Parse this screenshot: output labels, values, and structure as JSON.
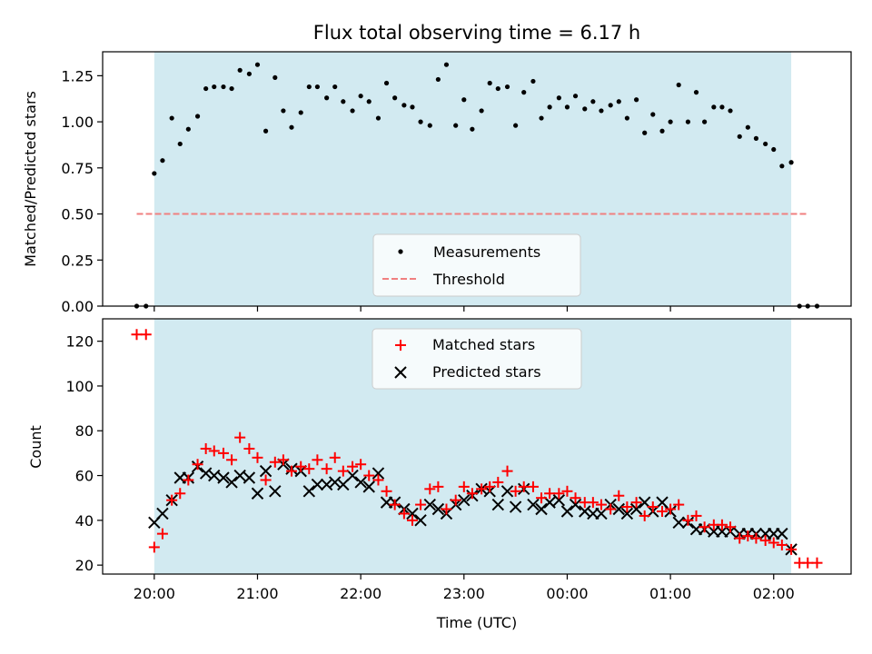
{
  "figure": {
    "title": "Flux total observing time = 6.17 h",
    "xlabel": "Time (UTC)",
    "x_ticks": [
      "20:00",
      "21:00",
      "22:00",
      "23:00",
      "00:00",
      "01:00",
      "02:00"
    ],
    "x_tick_hours": [
      0,
      1,
      2,
      3,
      4,
      5,
      6
    ],
    "x_origin": "20:00 UTC",
    "shaded_span_hours": [
      0,
      6.17
    ],
    "shade_color": "#add8e6"
  },
  "chart_data": [
    {
      "type": "scatter",
      "panel": "top",
      "ylabel": "Matched/Predicted stars",
      "ylim": [
        0,
        1.38
      ],
      "y_ticks": [
        "0.00",
        "0.25",
        "0.50",
        "0.75",
        "1.00",
        "1.25"
      ],
      "y_tick_values": [
        0,
        0.25,
        0.5,
        0.75,
        1.0,
        1.25
      ],
      "legend_position": "lower center",
      "threshold": {
        "name": "Threshold",
        "value": 0.5,
        "x_range": [
          -0.17,
          6.33
        ],
        "color": "#f08080"
      },
      "series": [
        {
          "name": "Measurements",
          "color": "#000000",
          "x": [
            -0.17,
            -0.08,
            0.0,
            0.08,
            0.17,
            0.25,
            0.33,
            0.42,
            0.5,
            0.58,
            0.67,
            0.75,
            0.83,
            0.92,
            1.0,
            1.08,
            1.17,
            1.25,
            1.33,
            1.42,
            1.5,
            1.58,
            1.67,
            1.75,
            1.83,
            1.92,
            2.0,
            2.08,
            2.17,
            2.25,
            2.33,
            2.42,
            2.5,
            2.58,
            2.67,
            2.75,
            2.83,
            2.92,
            3.0,
            3.08,
            3.17,
            3.25,
            3.33,
            3.42,
            3.5,
            3.58,
            3.67,
            3.75,
            3.83,
            3.92,
            4.0,
            4.08,
            4.17,
            4.25,
            4.33,
            4.42,
            4.5,
            4.58,
            4.67,
            4.75,
            4.83,
            4.92,
            5.0,
            5.08,
            5.17,
            5.25,
            5.33,
            5.42,
            5.5,
            5.58,
            5.67,
            5.75,
            5.83,
            5.92,
            6.0,
            6.08,
            6.17,
            6.25,
            6.33,
            6.42
          ],
          "y": [
            0.0,
            0.0,
            0.72,
            0.79,
            1.02,
            0.88,
            0.96,
            1.03,
            1.18,
            1.19,
            1.19,
            1.18,
            1.28,
            1.26,
            1.31,
            0.95,
            1.24,
            1.06,
            0.97,
            1.05,
            1.19,
            1.19,
            1.13,
            1.19,
            1.11,
            1.06,
            1.14,
            1.11,
            1.02,
            1.21,
            1.13,
            1.09,
            1.08,
            1.0,
            0.98,
            1.23,
            1.31,
            0.98,
            1.12,
            0.96,
            1.06,
            1.21,
            1.18,
            1.19,
            0.98,
            1.16,
            1.22,
            1.02,
            1.08,
            1.13,
            1.08,
            1.14,
            1.07,
            1.11,
            1.06,
            1.09,
            1.11,
            1.02,
            1.12,
            0.94,
            1.04,
            0.95,
            1.0,
            1.2,
            1.0,
            1.16,
            1.0,
            1.08,
            1.08,
            1.06,
            0.92,
            0.97,
            0.91,
            0.88,
            0.85,
            0.76,
            0.78,
            0.0,
            0.0,
            0.0
          ]
        }
      ]
    },
    {
      "type": "scatter",
      "panel": "bottom",
      "ylabel": "Count",
      "ylim": [
        16,
        130
      ],
      "y_ticks": [
        "20",
        "40",
        "60",
        "80",
        "100",
        "120"
      ],
      "y_tick_values": [
        20,
        40,
        60,
        80,
        100,
        120
      ],
      "legend_position": "upper center",
      "series": [
        {
          "name": "Matched stars",
          "marker": "+",
          "color": "#ff0000",
          "x": [
            -0.17,
            -0.08,
            0.0,
            0.08,
            0.17,
            0.25,
            0.33,
            0.42,
            0.5,
            0.58,
            0.67,
            0.75,
            0.83,
            0.92,
            1.0,
            1.08,
            1.17,
            1.25,
            1.33,
            1.42,
            1.5,
            1.58,
            1.67,
            1.75,
            1.83,
            1.92,
            2.0,
            2.08,
            2.17,
            2.25,
            2.33,
            2.42,
            2.5,
            2.58,
            2.67,
            2.75,
            2.83,
            2.92,
            3.0,
            3.08,
            3.17,
            3.25,
            3.33,
            3.42,
            3.5,
            3.58,
            3.67,
            3.75,
            3.83,
            3.92,
            4.0,
            4.08,
            4.17,
            4.25,
            4.33,
            4.42,
            4.5,
            4.58,
            4.67,
            4.75,
            4.83,
            4.92,
            5.0,
            5.08,
            5.17,
            5.25,
            5.33,
            5.42,
            5.5,
            5.58,
            5.67,
            5.75,
            5.83,
            5.92,
            6.0,
            6.08,
            6.17,
            6.25,
            6.33,
            6.42
          ],
          "y": [
            123,
            123,
            28,
            34,
            49,
            52,
            58,
            65,
            72,
            71,
            70,
            67,
            77,
            72,
            68,
            58,
            66,
            67,
            62,
            64,
            63,
            67,
            63,
            68,
            62,
            64,
            65,
            60,
            58,
            53,
            47,
            43,
            40,
            47,
            54,
            55,
            45,
            49,
            55,
            52,
            54,
            55,
            57,
            62,
            53,
            55,
            55,
            50,
            52,
            52,
            53,
            50,
            48,
            48,
            47,
            45,
            51,
            46,
            48,
            42,
            46,
            44,
            45,
            47,
            40,
            42,
            37,
            38,
            38,
            37,
            32,
            33,
            32,
            31,
            30,
            29,
            27,
            21,
            21,
            21
          ]
        },
        {
          "name": "Predicted stars",
          "marker": "x",
          "color": "#000000",
          "x": [
            0.0,
            0.08,
            0.17,
            0.25,
            0.33,
            0.42,
            0.5,
            0.58,
            0.67,
            0.75,
            0.83,
            0.92,
            1.0,
            1.08,
            1.17,
            1.25,
            1.33,
            1.42,
            1.5,
            1.58,
            1.67,
            1.75,
            1.83,
            1.92,
            2.0,
            2.08,
            2.17,
            2.25,
            2.33,
            2.42,
            2.5,
            2.58,
            2.67,
            2.75,
            2.83,
            2.92,
            3.0,
            3.08,
            3.17,
            3.25,
            3.33,
            3.42,
            3.5,
            3.58,
            3.67,
            3.75,
            3.83,
            3.92,
            4.0,
            4.08,
            4.17,
            4.25,
            4.33,
            4.42,
            4.5,
            4.58,
            4.67,
            4.75,
            4.83,
            4.92,
            5.0,
            5.08,
            5.17,
            5.25,
            5.33,
            5.42,
            5.5,
            5.58,
            5.67,
            5.75,
            5.83,
            5.92,
            6.0,
            6.08,
            6.17
          ],
          "y": [
            39,
            43,
            49,
            59,
            59,
            64,
            61,
            60,
            59,
            57,
            60,
            59,
            52,
            62,
            53,
            65,
            63,
            62,
            53,
            56,
            56,
            57,
            56,
            60,
            57,
            55,
            61,
            48,
            48,
            45,
            43,
            40,
            47,
            45,
            43,
            47,
            49,
            51,
            54,
            53,
            47,
            53,
            46,
            54,
            47,
            45,
            48,
            49,
            44,
            47,
            44,
            43,
            43,
            47,
            45,
            43,
            45,
            48,
            44,
            48,
            44,
            39,
            39,
            36,
            36,
            35,
            35,
            35,
            34,
            34,
            34,
            34,
            34,
            34,
            27
          ]
        }
      ]
    }
  ]
}
